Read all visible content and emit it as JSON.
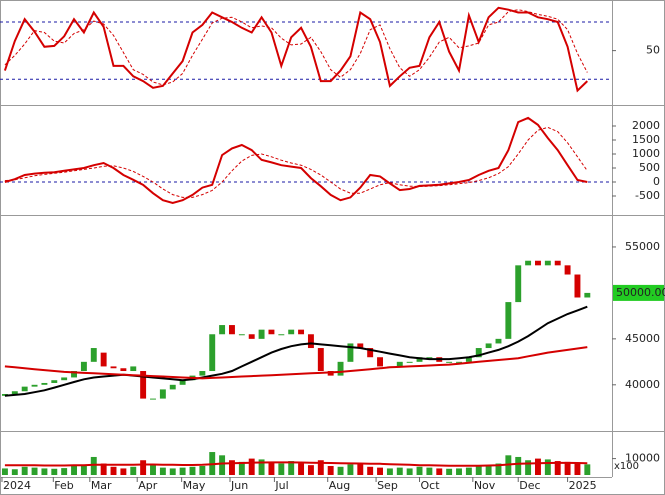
{
  "chart_data": [
    {
      "type": "line",
      "ylim": [
        -5,
        100
      ],
      "yticks": [
        50
      ],
      "levels": [
        20,
        80
      ],
      "level_color": "#1a1aa6",
      "series": [
        {
          "color": "#d40000",
          "values": [
            29,
            60,
            83,
            70,
            54,
            55,
            65,
            83,
            69,
            90,
            75,
            34,
            34,
            23,
            18,
            11,
            13,
            26,
            39,
            69,
            77,
            90,
            85,
            80,
            74,
            69,
            85,
            69,
            34,
            64,
            74,
            54,
            18,
            18,
            29,
            44,
            90,
            83,
            59,
            13,
            23,
            32,
            34,
            64,
            80,
            49,
            29,
            87,
            59,
            85,
            95,
            93,
            90,
            90,
            85,
            83,
            80,
            54,
            8,
            18
          ]
        },
        {
          "color": "#d40000",
          "dashed": true,
          "values": [
            35,
            45,
            57,
            71,
            69,
            60,
            58,
            68,
            72,
            81,
            78,
            66,
            48,
            30,
            25,
            17,
            14,
            17,
            26,
            45,
            62,
            79,
            84,
            85,
            80,
            74,
            76,
            74,
            63,
            56,
            57,
            64,
            49,
            30,
            22,
            30,
            47,
            72,
            77,
            52,
            32,
            23,
            30,
            43,
            59,
            64,
            53,
            55,
            58,
            77,
            80,
            91,
            93,
            91,
            88,
            86,
            83,
            72,
            47,
            27
          ]
        }
      ]
    },
    {
      "type": "line",
      "ylim": [
        -1071,
        2643
      ],
      "yticks": [
        -500,
        0,
        500,
        1000,
        1500,
        2000
      ],
      "levels": [
        0
      ],
      "level_color": "#1a1aa6",
      "series": [
        {
          "color": "#d40000",
          "values": [
            0,
            100,
            250,
            300,
            330,
            350,
            400,
            450,
            500,
            600,
            680,
            500,
            250,
            80,
            -100,
            -400,
            -650,
            -750,
            -650,
            -460,
            -200,
            -100,
            960,
            1200,
            1320,
            1140,
            790,
            700,
            600,
            550,
            500,
            140,
            -150,
            -460,
            -650,
            -550,
            -200,
            250,
            200,
            -50,
            -290,
            -250,
            -140,
            -120,
            -100,
            -50,
            0,
            70,
            250,
            400,
            500,
            1140,
            2140,
            2290,
            2040,
            1570,
            1140,
            600,
            70,
            0
          ]
        },
        {
          "color": "#d40000",
          "dashed": true,
          "values": [
            50,
            80,
            150,
            220,
            270,
            310,
            350,
            400,
            450,
            500,
            560,
            580,
            500,
            380,
            200,
            0,
            -250,
            -450,
            -550,
            -550,
            -450,
            -300,
            0,
            400,
            750,
            950,
            1000,
            900,
            780,
            680,
            600,
            450,
            250,
            0,
            -250,
            -400,
            -400,
            -250,
            -100,
            -20,
            -100,
            -150,
            -160,
            -150,
            -130,
            -100,
            -60,
            -20,
            50,
            150,
            300,
            550,
            1000,
            1500,
            1850,
            1950,
            1800,
            1400,
            900,
            400
          ]
        }
      ]
    },
    {
      "type": "candlestick",
      "ylim": [
        35300,
        58150
      ],
      "yticks": [
        40000,
        45000,
        55000
      ],
      "up_color": "#2ca02c",
      "down_color": "#d40000",
      "last_price": {
        "value": 50000,
        "label": "50000.00"
      },
      "last_price_color": "#22cc22",
      "open": [
        38800,
        39000,
        39300,
        39800,
        40000,
        40200,
        40500,
        40800,
        41500,
        42500,
        43500,
        42000,
        41800,
        41500,
        41500,
        38500,
        38500,
        39500,
        40000,
        40500,
        41000,
        41500,
        45500,
        46500,
        45500,
        45500,
        45000,
        46000,
        45500,
        45500,
        46000,
        45500,
        44000,
        41500,
        41000,
        42500,
        44500,
        44000,
        43000,
        42000,
        42000,
        42500,
        42500,
        43000,
        43000,
        42500,
        42500,
        42500,
        43000,
        44000,
        44500,
        45000,
        49000,
        53000,
        53500,
        53000,
        53500,
        53000,
        52000,
        49500
      ],
      "close": [
        39000,
        39300,
        39800,
        40000,
        40200,
        40500,
        40800,
        41500,
        42500,
        44000,
        42000,
        41800,
        41500,
        42000,
        38500,
        38500,
        39500,
        40000,
        40500,
        41000,
        41500,
        45500,
        46500,
        45500,
        45500,
        45000,
        46000,
        45500,
        45500,
        46000,
        45500,
        44000,
        41500,
        41000,
        42500,
        44500,
        44000,
        43000,
        42000,
        42000,
        42500,
        42500,
        43000,
        43000,
        42500,
        42500,
        42500,
        43000,
        44000,
        44500,
        45000,
        49000,
        53000,
        53500,
        53000,
        53500,
        53000,
        52000,
        49500,
        50000
      ],
      "series": [
        {
          "color": "#000000",
          "values": [
            38800,
            38900,
            39000,
            39200,
            39400,
            39700,
            40000,
            40300,
            40600,
            40800,
            40900,
            41000,
            41100,
            41000,
            40900,
            40800,
            40700,
            40600,
            40500,
            40600,
            40800,
            41000,
            41200,
            41500,
            42000,
            42500,
            43000,
            43500,
            43900,
            44200,
            44400,
            44500,
            44400,
            44300,
            44200,
            44100,
            44000,
            43800,
            43600,
            43400,
            43200,
            43000,
            42900,
            42800,
            42800,
            42800,
            42900,
            43000,
            43200,
            43500,
            43800,
            44200,
            44700,
            45300,
            46000,
            46700,
            47200,
            47700,
            48100,
            48500
          ]
        },
        {
          "color": "#d40000",
          "values": [
            42000,
            41900,
            41800,
            41700,
            41600,
            41500,
            41400,
            41350,
            41300,
            41250,
            41200,
            41150,
            41100,
            41050,
            41000,
            40950,
            40900,
            40850,
            40800,
            40750,
            40700,
            40750,
            40800,
            40850,
            40900,
            40950,
            41000,
            41050,
            41100,
            41150,
            41200,
            41250,
            41300,
            41350,
            41400,
            41500,
            41600,
            41700,
            41800,
            41900,
            41950,
            42000,
            42050,
            42100,
            42150,
            42200,
            42300,
            42400,
            42500,
            42600,
            42700,
            42800,
            42900,
            43100,
            43300,
            43500,
            43650,
            43800,
            43950,
            44100
          ]
        }
      ]
    },
    {
      "type": "bar",
      "ylim": [
        0,
        25000
      ],
      "yticks": [
        10000
      ],
      "unit": "x100",
      "color": "#2ca02c",
      "values": [
        4000,
        3500,
        5000,
        4500,
        4000,
        3800,
        4200,
        5500,
        6000,
        11000,
        7000,
        5000,
        4000,
        5000,
        9000,
        6000,
        4500,
        4000,
        4500,
        5000,
        5500,
        14000,
        12000,
        9000,
        8000,
        10000,
        9500,
        8000,
        7000,
        8500,
        7000,
        6000,
        9000,
        5500,
        5000,
        6500,
        7000,
        5000,
        4500,
        4000,
        4500,
        4000,
        5000,
        4500,
        4000,
        3800,
        4000,
        4500,
        6000,
        5500,
        7000,
        12000,
        11000,
        9000,
        10000,
        9500,
        8500,
        8000,
        7000,
        6500
      ],
      "series": [
        {
          "color": "#d40000",
          "values": [
            6000,
            6000,
            5900,
            5900,
            5800,
            5800,
            5800,
            5900,
            6000,
            6200,
            6300,
            6300,
            6200,
            6200,
            6400,
            6400,
            6300,
            6200,
            6100,
            6100,
            6200,
            6600,
            7000,
            7200,
            7300,
            7500,
            7600,
            7700,
            7700,
            7700,
            7600,
            7500,
            7400,
            7300,
            7200,
            7100,
            7000,
            6900,
            6800,
            6600,
            6400,
            6200,
            6000,
            5900,
            5800,
            5700,
            5600,
            5600,
            5700,
            5800,
            6000,
            6400,
            6800,
            7000,
            7200,
            7300,
            7400,
            7400,
            7300,
            7200
          ]
        }
      ],
      "xlim": [
        -0.5,
        61.5
      ],
      "xticks": [
        {
          "value": -0.3,
          "label": "2024"
        },
        {
          "value": 4.9,
          "label": "Feb"
        },
        {
          "value": 8.6,
          "label": "Mar"
        },
        {
          "value": 13.4,
          "label": "Apr"
        },
        {
          "value": 17.9,
          "label": "May"
        },
        {
          "value": 22.8,
          "label": "Jun"
        },
        {
          "value": 27.3,
          "label": "Jul"
        },
        {
          "value": 32.7,
          "label": "Aug"
        },
        {
          "value": 37.6,
          "label": "Sep"
        },
        {
          "value": 42,
          "label": "Oct"
        },
        {
          "value": 47.4,
          "label": "Nov"
        },
        {
          "value": 52,
          "label": "Dec"
        },
        {
          "value": 57,
          "label": "2025"
        }
      ]
    }
  ]
}
